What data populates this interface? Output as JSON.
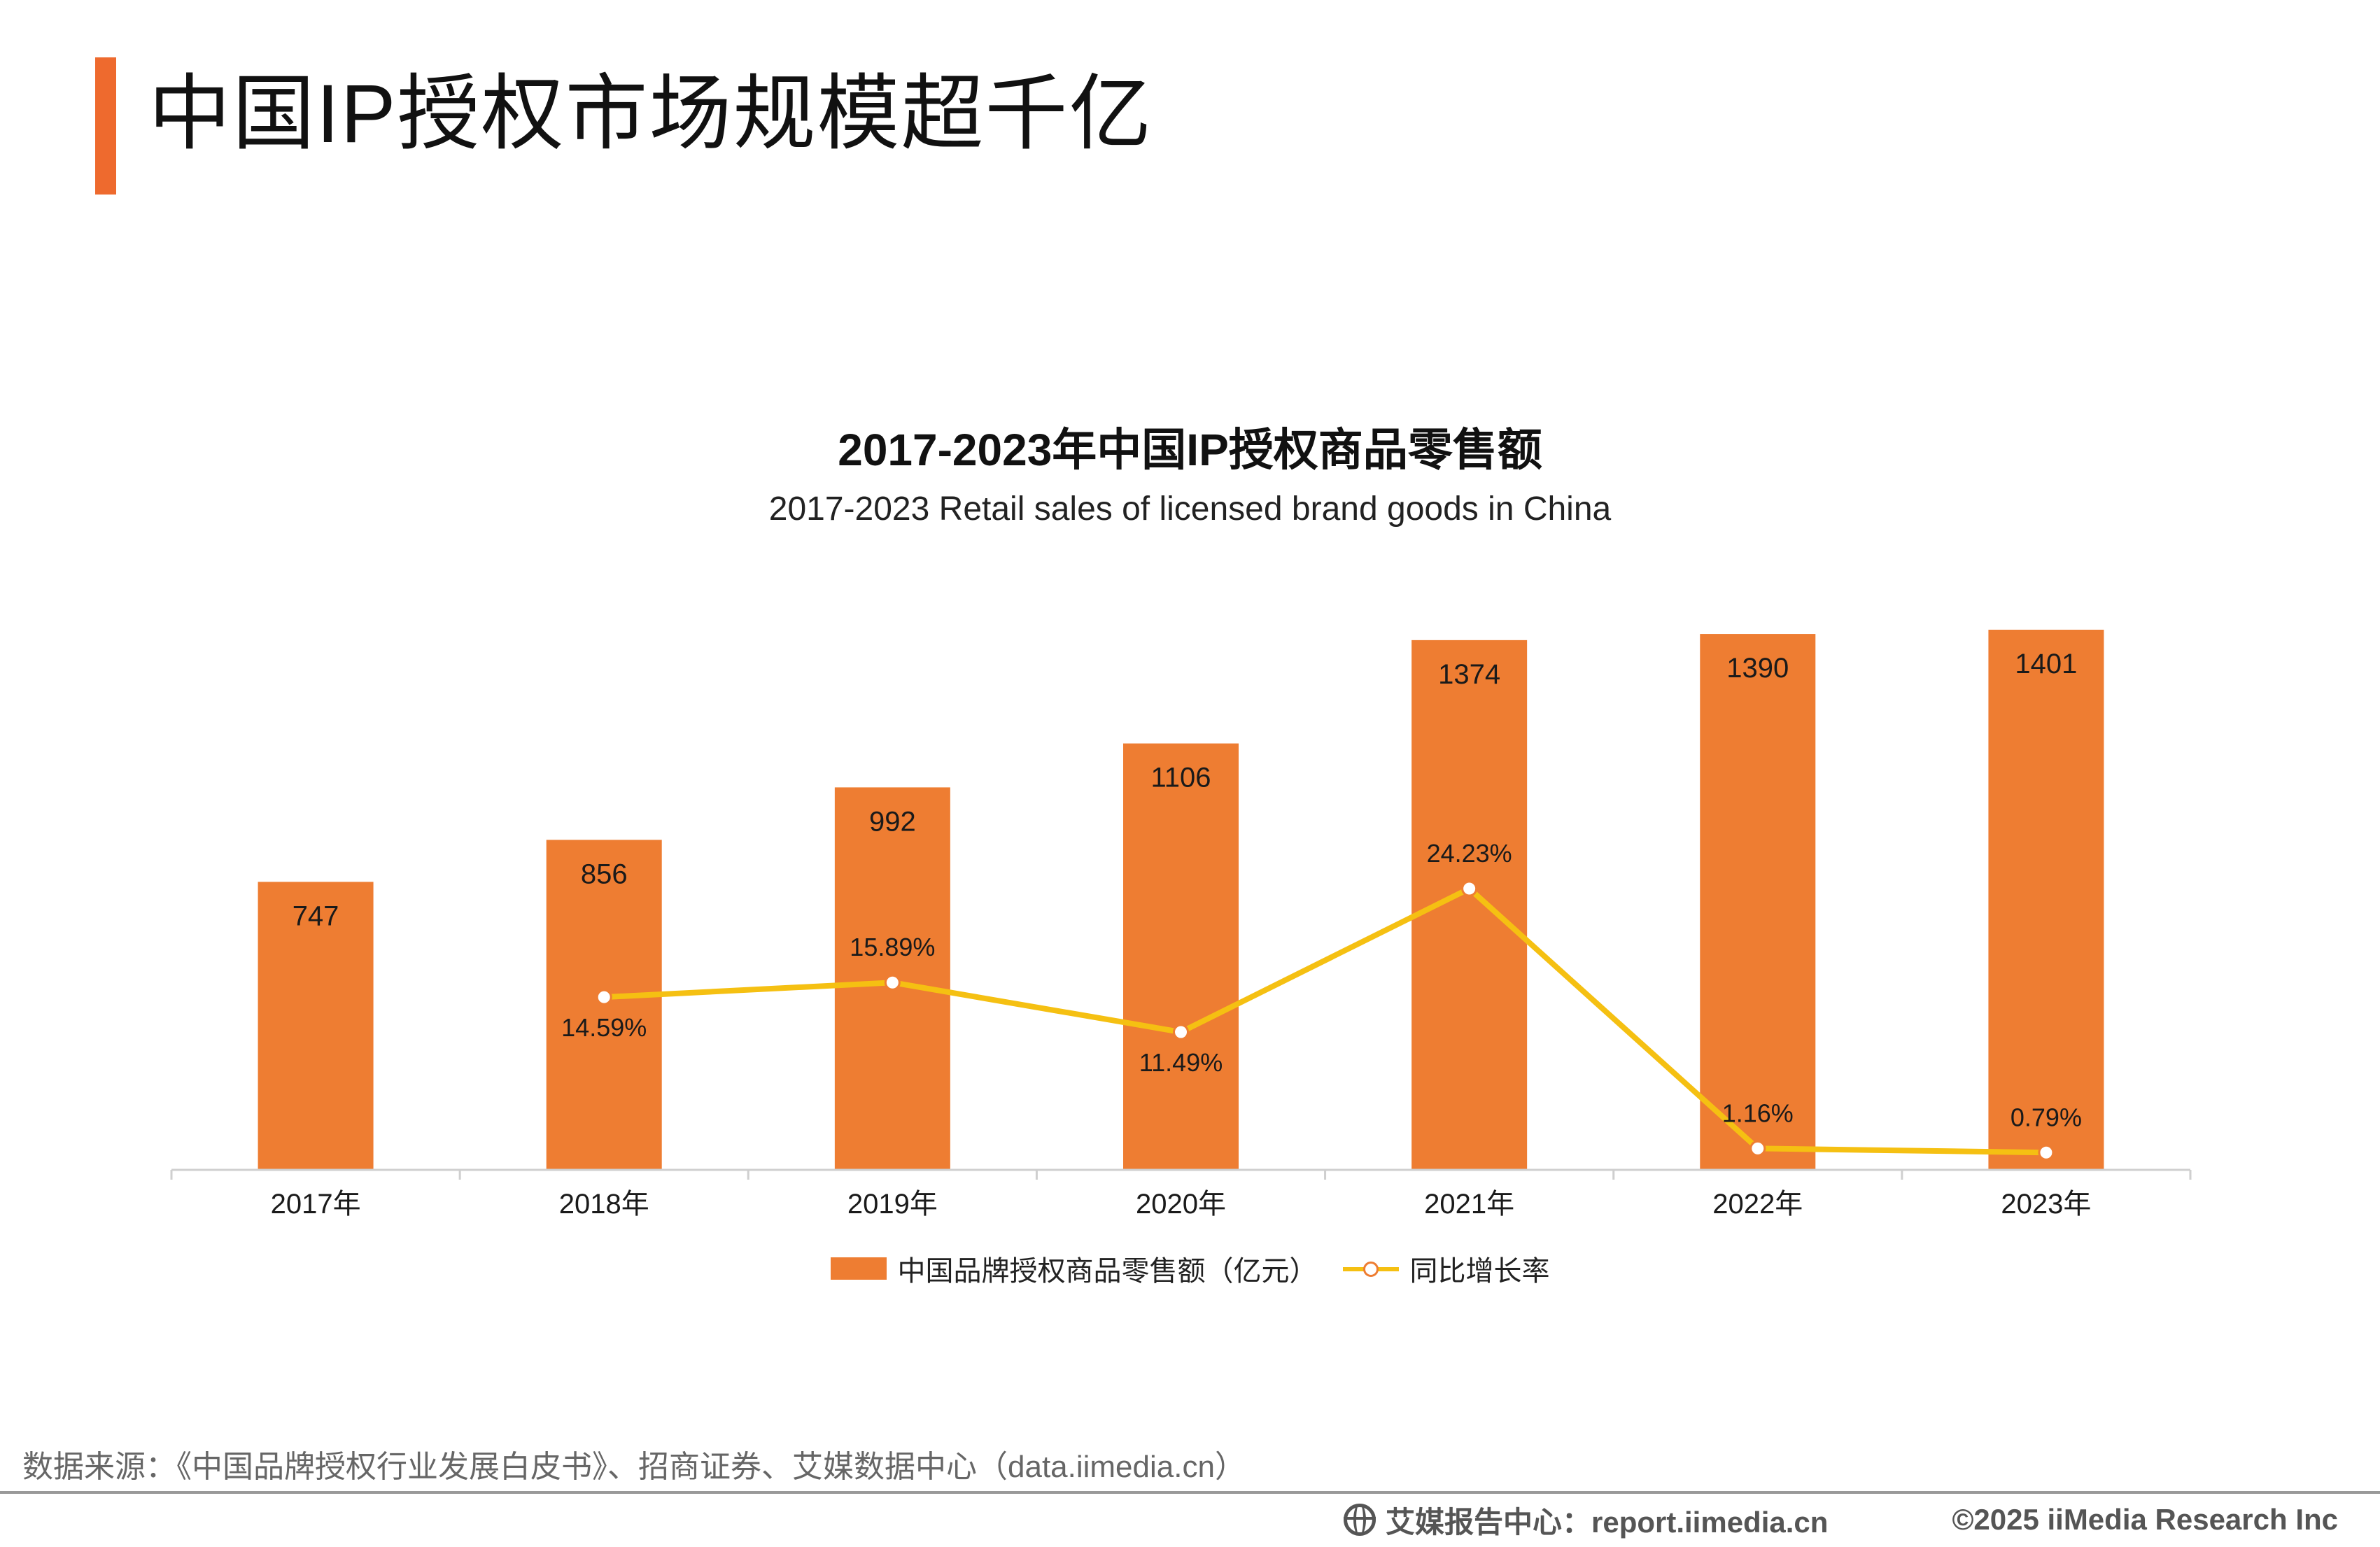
{
  "page": {
    "title": "中国IP授权市场规模超千亿",
    "source": "数据来源：《中国品牌授权行业发展白皮书》、招商证券、艾媒数据中心（data.iimedia.cn）",
    "footer_brand": "艾媒报告中心：report.iimedia.cn",
    "footer_copyright": "©2025  iiMedia Research  Inc",
    "accent_color": "#ee6a2e"
  },
  "chart_data": {
    "type": "bar",
    "title": "2017-2023年中国IP授权商品零售额",
    "subtitle": "2017-2023 Retail sales of licensed brand goods in China",
    "categories": [
      "2017年",
      "2018年",
      "2019年",
      "2020年",
      "2021年",
      "2022年",
      "2023年"
    ],
    "series": [
      {
        "name": "中国品牌授权商品零售额（亿元）",
        "type": "bar",
        "color": "#ee7d32",
        "values": [
          747,
          856,
          992,
          1106,
          1374,
          1390,
          1401
        ],
        "labels": [
          "747",
          "856",
          "992",
          "1106",
          "1374",
          "1390",
          "1401"
        ]
      },
      {
        "name": "同比增长率",
        "type": "line",
        "color": "#f5c012",
        "values": [
          null,
          14.59,
          15.89,
          11.49,
          24.23,
          1.16,
          0.79
        ],
        "labels": [
          "",
          "14.59%",
          "15.89%",
          "11.49%",
          "24.23%",
          "1.16%",
          "0.79%"
        ]
      }
    ],
    "ylim_bar": [
      0,
      1401
    ],
    "ylim_line": [
      0,
      24.23
    ],
    "grid": false,
    "legend_position": "bottom"
  }
}
